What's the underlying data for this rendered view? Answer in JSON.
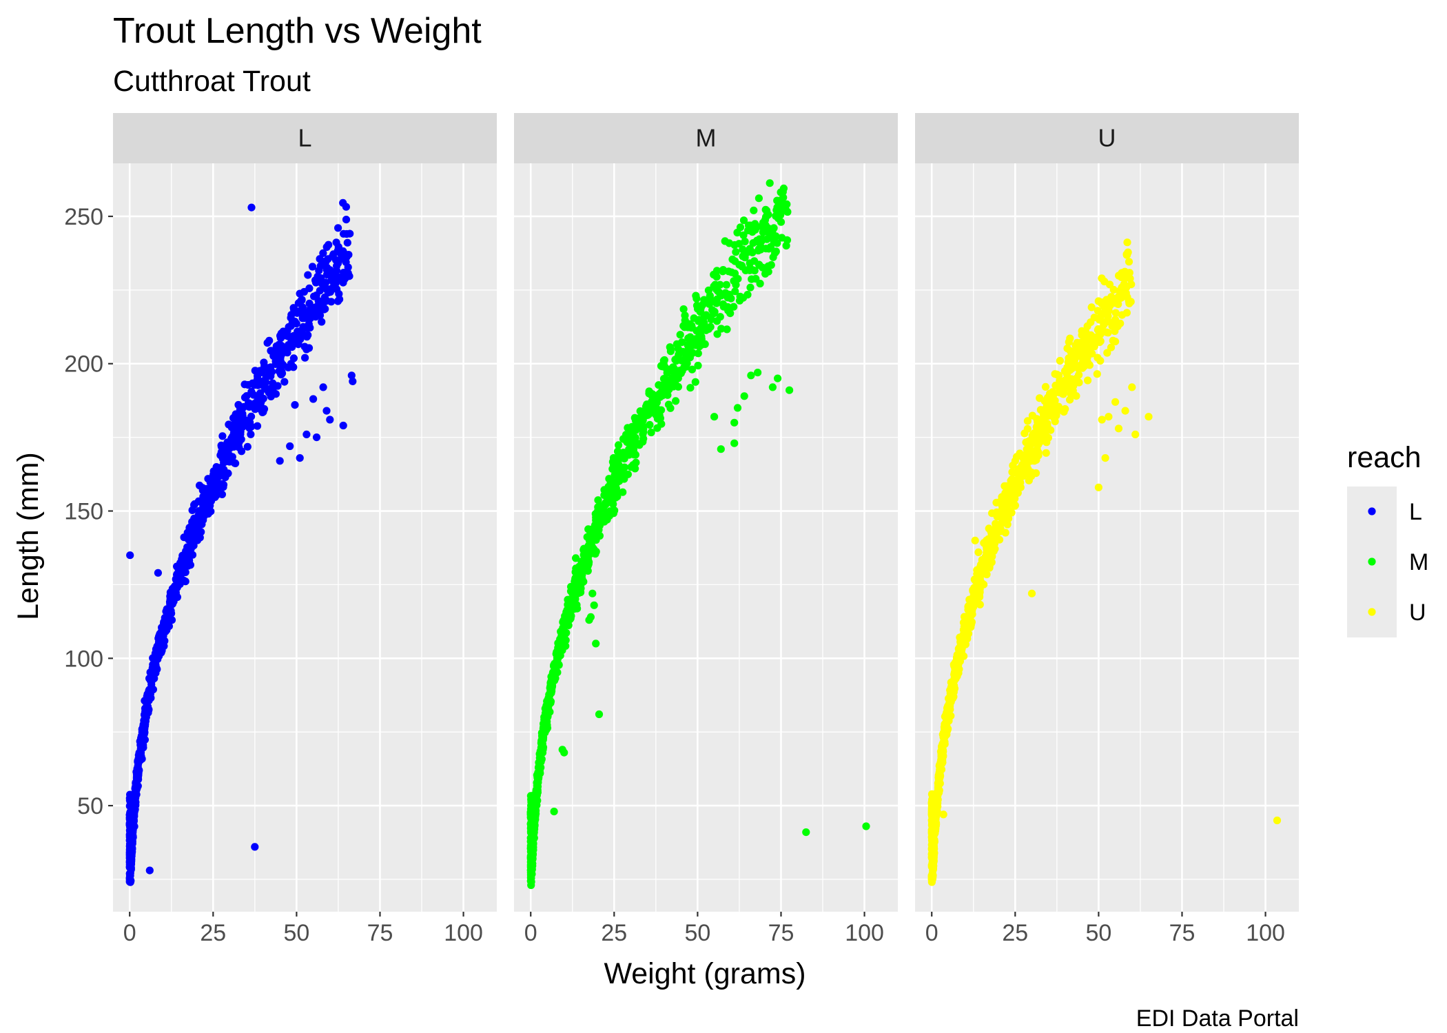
{
  "chart_data": {
    "type": "scatter",
    "title": "Trout Length vs Weight",
    "subtitle": "Cutthroat Trout",
    "xlabel": "Weight (grams)",
    "ylabel": "Length (mm)",
    "caption": "EDI Data Portal",
    "xlim": [
      -5,
      110
    ],
    "ylim": [
      14,
      268
    ],
    "x_ticks": [
      0,
      25,
      50,
      75,
      100
    ],
    "y_ticks": [
      50,
      100,
      150,
      200,
      250
    ],
    "x_tick_labels": [
      "0",
      "25",
      "50",
      "75",
      "100"
    ],
    "y_tick_labels": [
      "50",
      "100",
      "150",
      "200",
      "250"
    ],
    "grid": true,
    "legend": {
      "title": "reach",
      "position": "right",
      "entries": [
        {
          "label": "L",
          "color": "#0000ff"
        },
        {
          "label": "M",
          "color": "#00ff00"
        },
        {
          "label": "U",
          "color": "#ffff00"
        }
      ]
    },
    "facets": [
      {
        "label": "L",
        "color": "#0000ff",
        "curve": {
          "a": 42.5,
          "b": 0.41
        },
        "curve_xmax": 66,
        "points": [
          {
            "x": 0.1,
            "y": 135
          },
          {
            "x": 8.5,
            "y": 129
          },
          {
            "x": 36.5,
            "y": 253
          },
          {
            "x": 37.5,
            "y": 36
          },
          {
            "x": 6,
            "y": 28
          },
          {
            "x": 66.5,
            "y": 196
          },
          {
            "x": 66.8,
            "y": 194
          },
          {
            "x": 64,
            "y": 179
          },
          {
            "x": 60,
            "y": 181
          },
          {
            "x": 59,
            "y": 184
          },
          {
            "x": 58,
            "y": 192
          },
          {
            "x": 55,
            "y": 188
          },
          {
            "x": 49.5,
            "y": 186
          },
          {
            "x": 48,
            "y": 172
          },
          {
            "x": 53,
            "y": 176
          },
          {
            "x": 56,
            "y": 175
          },
          {
            "x": 51,
            "y": 168
          },
          {
            "x": 45,
            "y": 167
          },
          {
            "x": 0.2,
            "y": 24
          },
          {
            "x": 0.4,
            "y": 30
          }
        ]
      },
      {
        "label": "M",
        "color": "#00ff00",
        "curve": {
          "a": 42.5,
          "b": 0.41
        },
        "curve_xmax": 77,
        "points": [
          {
            "x": 20.5,
            "y": 81
          },
          {
            "x": 82.5,
            "y": 41
          },
          {
            "x": 100.5,
            "y": 43
          },
          {
            "x": 7,
            "y": 48
          },
          {
            "x": 9.5,
            "y": 69
          },
          {
            "x": 10,
            "y": 68
          },
          {
            "x": 18,
            "y": 114
          },
          {
            "x": 15,
            "y": 125
          },
          {
            "x": 18.5,
            "y": 122
          },
          {
            "x": 19,
            "y": 118
          },
          {
            "x": 17.5,
            "y": 113
          },
          {
            "x": 19.5,
            "y": 105
          },
          {
            "x": 77.5,
            "y": 191
          },
          {
            "x": 74,
            "y": 195
          },
          {
            "x": 72.5,
            "y": 192
          },
          {
            "x": 68,
            "y": 197
          },
          {
            "x": 66,
            "y": 196
          },
          {
            "x": 64,
            "y": 189
          },
          {
            "x": 62,
            "y": 185
          },
          {
            "x": 61,
            "y": 180
          },
          {
            "x": 55,
            "y": 182
          },
          {
            "x": 57,
            "y": 171
          },
          {
            "x": 61,
            "y": 173
          },
          {
            "x": 13.5,
            "y": 134
          },
          {
            "x": 0.1,
            "y": 23
          },
          {
            "x": 0.2,
            "y": 27
          }
        ]
      },
      {
        "label": "U",
        "color": "#ffff00",
        "curve": {
          "a": 42.5,
          "b": 0.41
        },
        "curve_xmax": 60,
        "points": [
          {
            "x": 103.5,
            "y": 45
          },
          {
            "x": 3.5,
            "y": 47
          },
          {
            "x": 13,
            "y": 140
          },
          {
            "x": 14,
            "y": 136
          },
          {
            "x": 30,
            "y": 122
          },
          {
            "x": 60,
            "y": 192
          },
          {
            "x": 65,
            "y": 182
          },
          {
            "x": 58,
            "y": 184
          },
          {
            "x": 55,
            "y": 187
          },
          {
            "x": 53,
            "y": 182
          },
          {
            "x": 51,
            "y": 181
          },
          {
            "x": 56,
            "y": 178
          },
          {
            "x": 61,
            "y": 176
          },
          {
            "x": 52,
            "y": 168
          },
          {
            "x": 50,
            "y": 158
          },
          {
            "x": 0.2,
            "y": 25
          },
          {
            "x": 0.3,
            "y": 28
          }
        ]
      }
    ]
  }
}
